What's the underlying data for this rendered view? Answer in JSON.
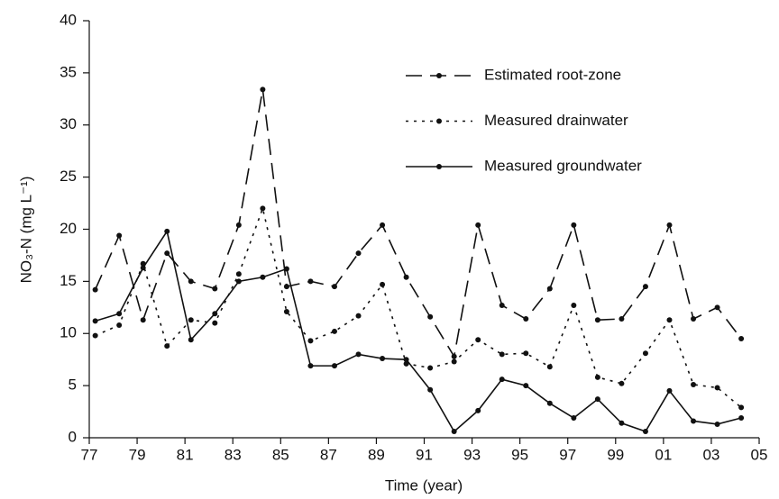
{
  "chart_data": {
    "type": "line",
    "x_label": "Time (year)",
    "y_label": "NO₃-N (mg L⁻¹)",
    "x": [
      77.25,
      78.25,
      79.25,
      80.25,
      81.25,
      82.25,
      83.25,
      84.25,
      85.25,
      86.25,
      87.25,
      88.25,
      89.25,
      90.25,
      91.25,
      92.25,
      93.25,
      94.25,
      95.25,
      96.25,
      97.25,
      98.25,
      99.25,
      100.25,
      101.25,
      102.25,
      103.25,
      104.25
    ],
    "series": [
      {
        "name": "Estimated root-zone",
        "color": "#111111",
        "style": "dashed",
        "values": [
          14.2,
          19.4,
          11.3,
          17.7,
          15.0,
          14.3,
          20.4,
          33.4,
          14.5,
          15.0,
          14.5,
          17.7,
          20.4,
          15.4,
          11.6,
          7.8,
          20.4,
          12.7,
          11.4,
          14.3,
          20.4,
          11.3,
          11.4,
          14.5,
          20.4,
          11.4,
          12.5,
          9.5
        ]
      },
      {
        "name": "Measured drainwater",
        "color": "#111111",
        "style": "dotted",
        "values": [
          9.8,
          10.8,
          16.7,
          8.8,
          11.3,
          11.0,
          15.7,
          22.0,
          12.1,
          9.3,
          10.2,
          11.7,
          14.7,
          7.1,
          6.7,
          7.3,
          9.4,
          8.0,
          8.1,
          6.8,
          12.7,
          5.8,
          5.2,
          8.1,
          11.3,
          5.1,
          4.8,
          2.9
        ]
      },
      {
        "name": "Measured groundwater",
        "color": "#111111",
        "style": "solid",
        "values": [
          11.2,
          11.9,
          16.3,
          19.8,
          9.4,
          11.9,
          15.0,
          15.4,
          16.2,
          6.9,
          6.9,
          8.0,
          7.6,
          7.5,
          4.6,
          0.6,
          2.6,
          5.6,
          5.0,
          3.3,
          1.9,
          3.7,
          1.4,
          0.6,
          4.5,
          1.6,
          1.3,
          1.9
        ]
      }
    ],
    "xlim": [
      77,
      105
    ],
    "xticks": [
      77,
      79,
      81,
      83,
      85,
      87,
      89,
      91,
      93,
      95,
      97,
      99,
      {
        "value": 101,
        "label": "01"
      },
      {
        "value": 103,
        "label": "03"
      },
      {
        "value": 105,
        "label": "05"
      }
    ],
    "ylim": [
      0,
      40
    ],
    "yticks": [
      0,
      5,
      10,
      15,
      20,
      25,
      30,
      35,
      40
    ],
    "legend": "upper right"
  }
}
